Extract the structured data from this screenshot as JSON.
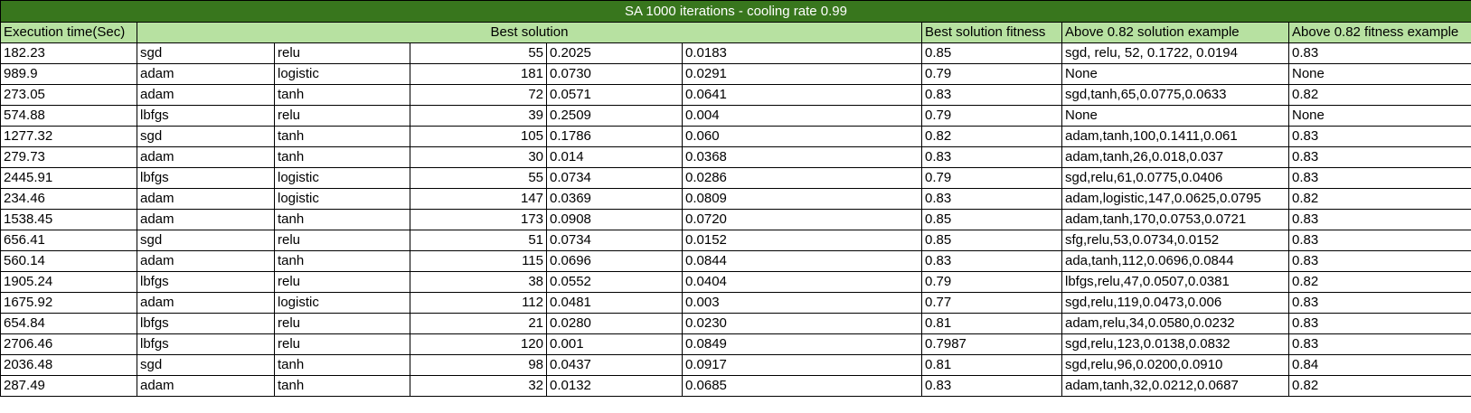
{
  "title": "SA 1000 iterations - cooling rate 0.99",
  "headers": {
    "execution_time": "Execution time(Sec)",
    "best_solution": "Best solution",
    "best_fitness": "Best solution fitness",
    "above_solution": "Above 0.82 solution example",
    "above_fitness": "Above 0.82 fitness example"
  },
  "rows": [
    {
      "time": "182.23",
      "solver": "sgd",
      "activation": "relu",
      "neurons": "55",
      "alpha": "0.2025",
      "lr": "0.0183",
      "fitness": "0.85",
      "example": "sgd, relu, 52, 0.1722, 0.0194",
      "example_fitness": "0.83"
    },
    {
      "time": "989.9",
      "solver": "adam",
      "activation": "logistic",
      "neurons": "181",
      "alpha": "0.0730",
      "lr": "0.0291",
      "fitness": "0.79",
      "example": "None",
      "example_fitness": "None"
    },
    {
      "time": "273.05",
      "solver": "adam",
      "activation": "tanh",
      "neurons": "72",
      "alpha": "0.0571",
      "lr": "0.0641",
      "fitness": "0.83",
      "example": "sgd,tanh,65,0.0775,0.0633",
      "example_fitness": "0.82"
    },
    {
      "time": "574.88",
      "solver": "lbfgs",
      "activation": "relu",
      "neurons": "39",
      "alpha": "0.2509",
      "lr": "0.004",
      "fitness": "0.79",
      "example": "None",
      "example_fitness": "None"
    },
    {
      "time": "1277.32",
      "solver": "sgd",
      "activation": "tanh",
      "neurons": "105",
      "alpha": "0.1786",
      "lr": "0.060",
      "fitness": "0.82",
      "example": "adam,tanh,100,0.1411,0.061",
      "example_fitness": "0.83"
    },
    {
      "time": "279.73",
      "solver": "adam",
      "activation": "tanh",
      "neurons": "30",
      "alpha": "0.014",
      "lr": "0.0368",
      "fitness": "0.83",
      "example": "adam,tanh,26,0.018,0.037",
      "example_fitness": "0.83"
    },
    {
      "time": "2445.91",
      "solver": "lbfgs",
      "activation": "logistic",
      "neurons": "55",
      "alpha": "0.0734",
      "lr": "0.0286",
      "fitness": "0.79",
      "example": "sgd,relu,61,0.0775,0.0406",
      "example_fitness": "0.83"
    },
    {
      "time": "234.46",
      "solver": "adam",
      "activation": "logistic",
      "neurons": "147",
      "alpha": "0.0369",
      "lr": "0.0809",
      "fitness": "0.83",
      "example": "adam,logistic,147,0.0625,0.0795",
      "example_fitness": "0.82"
    },
    {
      "time": "1538.45",
      "solver": "adam",
      "activation": "tanh",
      "neurons": "173",
      "alpha": "0.0908",
      "lr": "0.0720",
      "fitness": "0.85",
      "example": "adam,tanh,170,0.0753,0.0721",
      "example_fitness": "0.83"
    },
    {
      "time": "656.41",
      "solver": "sgd",
      "activation": "relu",
      "neurons": "51",
      "alpha": "0.0734",
      "lr": "0.0152",
      "fitness": "0.85",
      "example": "sfg,relu,53,0.0734,0.0152",
      "example_fitness": "0.83"
    },
    {
      "time": "560.14",
      "solver": "adam",
      "activation": "tanh",
      "neurons": "115",
      "alpha": "0.0696",
      "lr": "0.0844",
      "fitness": "0.83",
      "example": "ada,tanh,112,0.0696,0.0844",
      "example_fitness": "0.83"
    },
    {
      "time": "1905.24",
      "solver": "lbfgs",
      "activation": "relu",
      "neurons": "38",
      "alpha": "0.0552",
      "lr": "0.0404",
      "fitness": "0.79",
      "example": "lbfgs,relu,47,0.0507,0.0381",
      "example_fitness": "0.82"
    },
    {
      "time": "1675.92",
      "solver": "adam",
      "activation": "logistic",
      "neurons": "112",
      "alpha": "0.0481",
      "lr": "0.003",
      "fitness": "0.77",
      "example": "sgd,relu,119,0.0473,0.006",
      "example_fitness": "0.83"
    },
    {
      "time": "654.84",
      "solver": "lbfgs",
      "activation": "relu",
      "neurons": "21",
      "alpha": "0.0280",
      "lr": "0.0230",
      "fitness": "0.81",
      "example": "adam,relu,34,0.0580,0.0232",
      "example_fitness": "0.83"
    },
    {
      "time": "2706.46",
      "solver": "lbfgs",
      "activation": "relu",
      "neurons": "120",
      "alpha": "0.001",
      "lr": "0.0849",
      "fitness": "0.7987",
      "example": "sgd,relu,123,0.0138,0.0832",
      "example_fitness": "0.83"
    },
    {
      "time": "2036.48",
      "solver": "sgd",
      "activation": "tanh",
      "neurons": "98",
      "alpha": "0.0437",
      "lr": "0.0917",
      "fitness": "0.81",
      "example": "sgd,relu,96,0.0200,0.0910",
      "example_fitness": "0.84"
    },
    {
      "time": "287.49",
      "solver": "adam",
      "activation": "tanh",
      "neurons": "32",
      "alpha": "0.0132",
      "lr": "0.0685",
      "fitness": "0.83",
      "example": "adam,tanh,32,0.0212,0.0687",
      "example_fitness": "0.82"
    }
  ]
}
